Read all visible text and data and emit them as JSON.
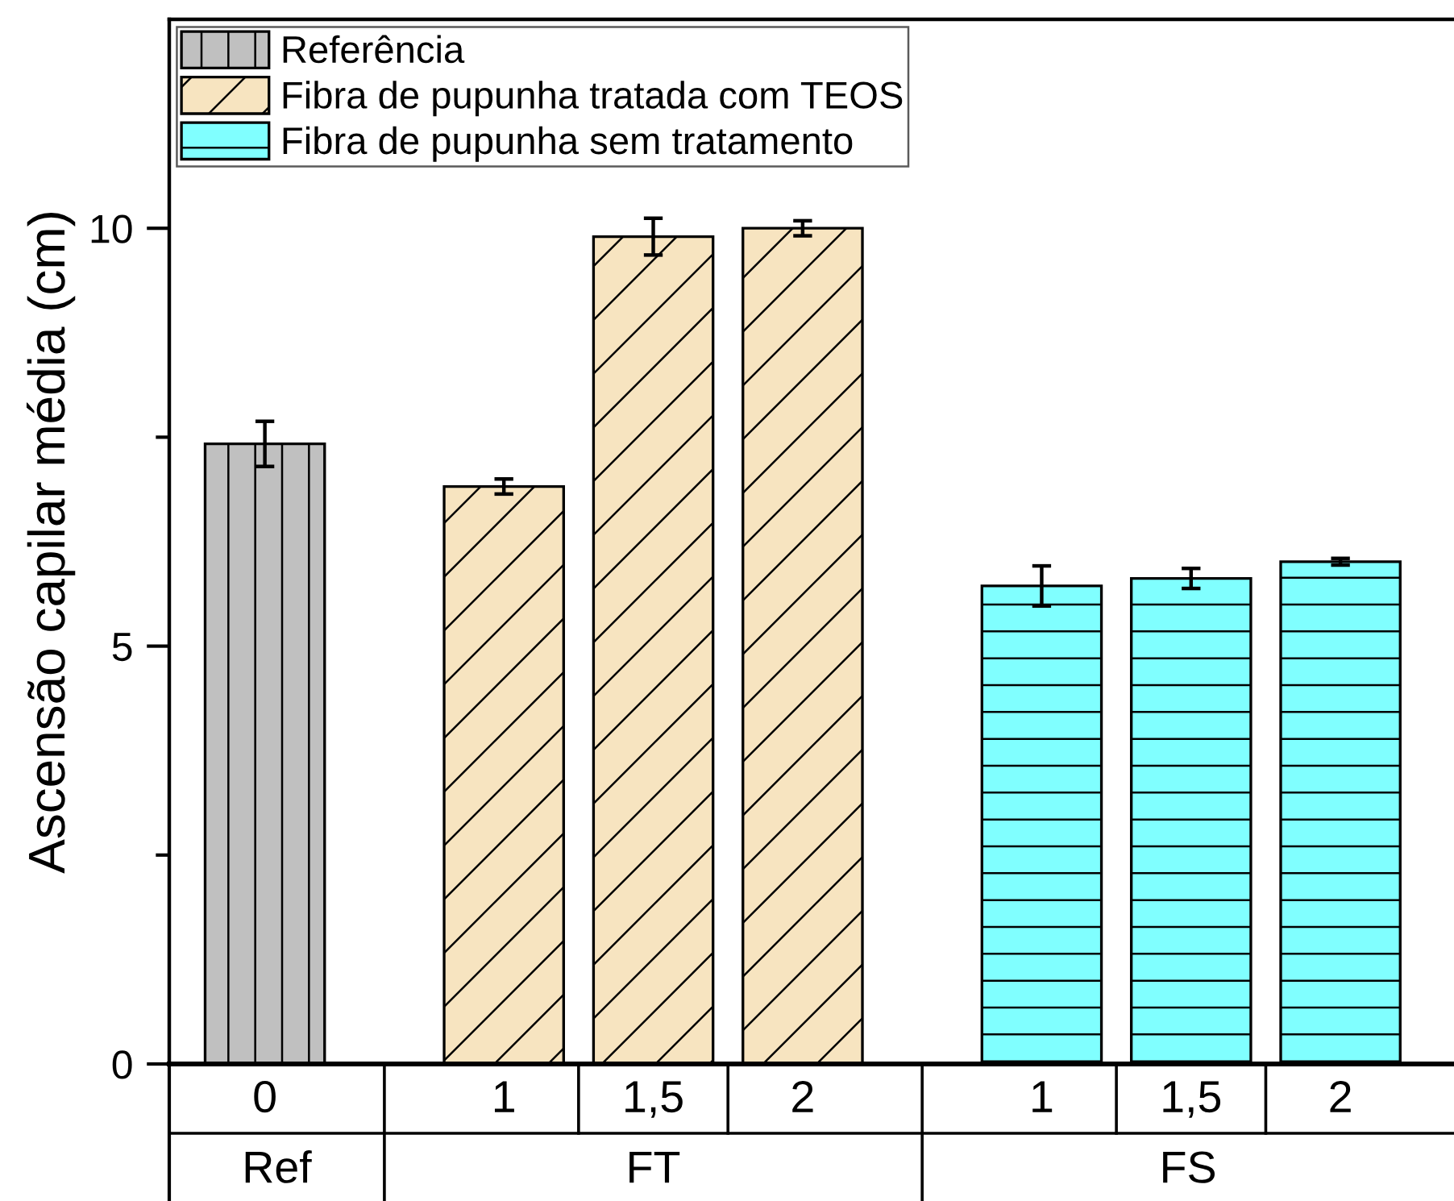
{
  "chart_data": {
    "type": "bar",
    "ylabel": "Ascensão capilar média (cm)",
    "categories": [
      "0",
      "1",
      "1,5",
      "2",
      "1",
      "1,5",
      "2"
    ],
    "series": [
      {
        "name": "Referência",
        "color": "#c0c0c0",
        "values": [
          7.42,
          null,
          null,
          null,
          null,
          null,
          null
        ],
        "errors": [
          0.27,
          null,
          null,
          null,
          null,
          null,
          null
        ]
      },
      {
        "name": "Fibra de pupunha tratada com TEOS",
        "color": "#f7e4c0",
        "values": [
          null,
          6.91,
          9.9,
          10.0,
          null,
          null,
          null
        ],
        "errors": [
          null,
          0.09,
          0.22,
          0.09,
          null,
          null,
          null
        ]
      },
      {
        "name": "Fibra de pupunha sem tratamento",
        "color": "#80ffff",
        "values": [
          null,
          null,
          null,
          null,
          5.72,
          5.81,
          6.01
        ],
        "errors": [
          null,
          null,
          null,
          null,
          0.24,
          0.12,
          0.04
        ]
      }
    ],
    "annotations": [
      "Ref",
      "FT",
      "FS"
    ],
    "ylim": [
      0,
      12.5
    ],
    "yticks": [
      0,
      {
        "value": 2.5,
        "label": null
      },
      5,
      {
        "value": 7.5,
        "label": null
      },
      10
    ],
    "legend": "top left"
  }
}
